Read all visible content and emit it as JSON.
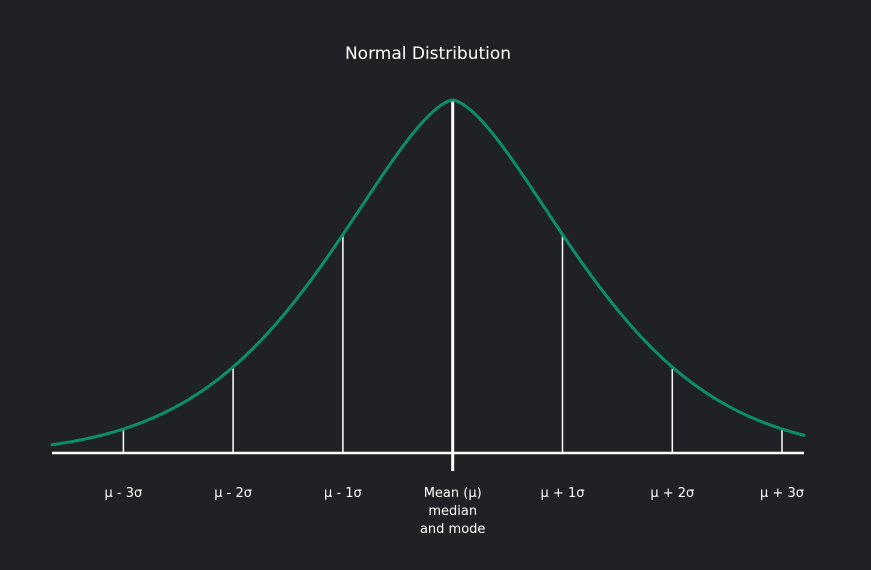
{
  "chart_data": {
    "type": "line",
    "title": "Normal Distribution",
    "xlabel": "",
    "ylabel": "",
    "mean": 0,
    "sd": 1,
    "xlim": [
      -3.65,
      3.2
    ],
    "ticks": [
      {
        "x": -3,
        "lines": [
          "μ - 3σ"
        ]
      },
      {
        "x": -2,
        "lines": [
          "μ - 2σ"
        ]
      },
      {
        "x": -1,
        "lines": [
          "μ - 1σ"
        ]
      },
      {
        "x": 0,
        "lines": [
          "Mean (μ)",
          "median",
          "and mode"
        ]
      },
      {
        "x": 1,
        "lines": [
          "μ + 1σ"
        ]
      },
      {
        "x": 2,
        "lines": [
          "μ + 2σ"
        ]
      },
      {
        "x": 3,
        "lines": [
          "μ + 3σ"
        ]
      }
    ],
    "grid": false,
    "legend": "none",
    "colors": {
      "background": "#202124",
      "curve": "#0b8f68",
      "axis": "#ffffff",
      "text": "#ffffff"
    }
  }
}
